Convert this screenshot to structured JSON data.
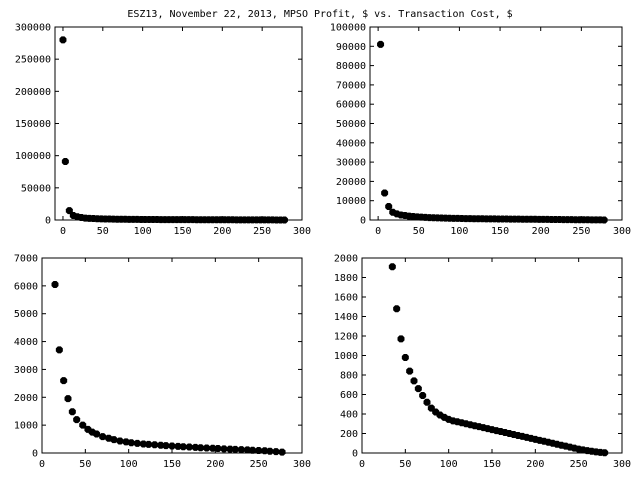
{
  "figure_title": "ESZ13, November 22, 2013, MPSO Profit, $ vs. Transaction Cost, $",
  "colors": {
    "background": "#ffffff",
    "axis": "#000000",
    "marker": "#000000"
  },
  "chart_data": [
    {
      "type": "scatter",
      "title": "",
      "xlabel": "",
      "ylabel": "",
      "xlim": [
        -10,
        300
      ],
      "ylim": [
        0,
        300000
      ],
      "xticks": [
        0,
        50,
        100,
        150,
        200,
        250,
        300
      ],
      "yticks": [
        0,
        50000,
        100000,
        150000,
        200000,
        250000,
        300000
      ],
      "points": [
        [
          0,
          280000
        ],
        [
          3,
          91000
        ],
        [
          8,
          14500
        ],
        [
          13,
          7000
        ],
        [
          18,
          5000
        ],
        [
          23,
          3800
        ],
        [
          28,
          3000
        ],
        [
          33,
          2600
        ],
        [
          38,
          2300
        ],
        [
          43,
          2000
        ],
        [
          48,
          1800
        ],
        [
          53,
          1600
        ],
        [
          58,
          1500
        ],
        [
          63,
          1350
        ],
        [
          68,
          1250
        ],
        [
          73,
          1150
        ],
        [
          78,
          1080
        ],
        [
          83,
          1020
        ],
        [
          88,
          960
        ],
        [
          93,
          900
        ],
        [
          98,
          860
        ],
        [
          103,
          820
        ],
        [
          108,
          780
        ],
        [
          113,
          740
        ],
        [
          118,
          700
        ],
        [
          123,
          680
        ],
        [
          128,
          650
        ],
        [
          133,
          620
        ],
        [
          138,
          600
        ],
        [
          143,
          580
        ],
        [
          148,
          560
        ],
        [
          153,
          540
        ],
        [
          158,
          520
        ],
        [
          163,
          500
        ],
        [
          168,
          480
        ],
        [
          173,
          460
        ],
        [
          178,
          440
        ],
        [
          183,
          420
        ],
        [
          188,
          400
        ],
        [
          193,
          380
        ],
        [
          198,
          360
        ],
        [
          203,
          340
        ],
        [
          208,
          320
        ],
        [
          213,
          300
        ],
        [
          218,
          280
        ],
        [
          223,
          260
        ],
        [
          228,
          240
        ],
        [
          233,
          220
        ],
        [
          238,
          200
        ],
        [
          243,
          180
        ],
        [
          248,
          160
        ],
        [
          253,
          140
        ],
        [
          258,
          120
        ],
        [
          263,
          100
        ],
        [
          268,
          80
        ],
        [
          273,
          60
        ],
        [
          278,
          30
        ]
      ]
    },
    {
      "type": "scatter",
      "title": "",
      "xlabel": "",
      "ylabel": "",
      "xlim": [
        -10,
        300
      ],
      "ylim": [
        0,
        100000
      ],
      "xticks": [
        0,
        50,
        100,
        150,
        200,
        250,
        300
      ],
      "yticks": [
        0,
        10000,
        20000,
        30000,
        40000,
        50000,
        60000,
        70000,
        80000,
        90000,
        100000
      ],
      "points": [
        [
          3,
          91000
        ],
        [
          8,
          14000
        ],
        [
          13,
          7000
        ],
        [
          18,
          4000
        ],
        [
          23,
          3200
        ],
        [
          28,
          2600
        ],
        [
          33,
          2300
        ],
        [
          38,
          2000
        ],
        [
          43,
          1800
        ],
        [
          48,
          1600
        ],
        [
          53,
          1500
        ],
        [
          58,
          1350
        ],
        [
          63,
          1250
        ],
        [
          68,
          1150
        ],
        [
          73,
          1080
        ],
        [
          78,
          1020
        ],
        [
          83,
          960
        ],
        [
          88,
          900
        ],
        [
          93,
          860
        ],
        [
          98,
          820
        ],
        [
          103,
          780
        ],
        [
          108,
          740
        ],
        [
          113,
          700
        ],
        [
          118,
          680
        ],
        [
          123,
          650
        ],
        [
          128,
          620
        ],
        [
          133,
          600
        ],
        [
          138,
          580
        ],
        [
          143,
          560
        ],
        [
          148,
          540
        ],
        [
          153,
          520
        ],
        [
          158,
          500
        ],
        [
          163,
          480
        ],
        [
          168,
          460
        ],
        [
          173,
          440
        ],
        [
          178,
          420
        ],
        [
          183,
          400
        ],
        [
          188,
          380
        ],
        [
          193,
          360
        ],
        [
          198,
          340
        ],
        [
          203,
          320
        ],
        [
          208,
          300
        ],
        [
          213,
          280
        ],
        [
          218,
          260
        ],
        [
          223,
          240
        ],
        [
          228,
          220
        ],
        [
          233,
          200
        ],
        [
          238,
          180
        ],
        [
          243,
          160
        ],
        [
          248,
          140
        ],
        [
          253,
          120
        ],
        [
          258,
          100
        ],
        [
          263,
          80
        ],
        [
          268,
          60
        ],
        [
          273,
          40
        ],
        [
          278,
          20
        ]
      ]
    },
    {
      "type": "scatter",
      "title": "",
      "xlabel": "",
      "ylabel": "",
      "xlim": [
        0,
        300
      ],
      "ylim": [
        0,
        7000
      ],
      "xticks": [
        0,
        50,
        100,
        150,
        200,
        250,
        300
      ],
      "yticks": [
        0,
        1000,
        2000,
        3000,
        4000,
        5000,
        6000,
        7000
      ],
      "points": [
        [
          15,
          6050
        ],
        [
          20,
          3700
        ],
        [
          25,
          2600
        ],
        [
          30,
          1950
        ],
        [
          35,
          1480
        ],
        [
          40,
          1200
        ],
        [
          47,
          1000
        ],
        [
          53,
          850
        ],
        [
          58,
          750
        ],
        [
          63,
          680
        ],
        [
          70,
          590
        ],
        [
          77,
          530
        ],
        [
          83,
          480
        ],
        [
          90,
          430
        ],
        [
          97,
          400
        ],
        [
          103,
          370
        ],
        [
          110,
          345
        ],
        [
          117,
          325
        ],
        [
          123,
          310
        ],
        [
          130,
          295
        ],
        [
          137,
          280
        ],
        [
          143,
          265
        ],
        [
          150,
          250
        ],
        [
          157,
          240
        ],
        [
          163,
          225
        ],
        [
          170,
          215
        ],
        [
          177,
          200
        ],
        [
          183,
          190
        ],
        [
          190,
          180
        ],
        [
          197,
          170
        ],
        [
          203,
          160
        ],
        [
          210,
          150
        ],
        [
          217,
          140
        ],
        [
          223,
          130
        ],
        [
          230,
          120
        ],
        [
          237,
          110
        ],
        [
          243,
          100
        ],
        [
          250,
          90
        ],
        [
          257,
          80
        ],
        [
          263,
          65
        ],
        [
          270,
          50
        ],
        [
          277,
          30
        ]
      ]
    },
    {
      "type": "scatter",
      "title": "",
      "xlabel": "",
      "ylabel": "",
      "xlim": [
        0,
        300
      ],
      "ylim": [
        0,
        2000
      ],
      "xticks": [
        0,
        50,
        100,
        150,
        200,
        250,
        300
      ],
      "yticks": [
        0,
        200,
        400,
        600,
        800,
        1000,
        1200,
        1400,
        1600,
        1800,
        2000
      ],
      "points": [
        [
          35,
          1910
        ],
        [
          40,
          1480
        ],
        [
          45,
          1170
        ],
        [
          50,
          980
        ],
        [
          55,
          840
        ],
        [
          60,
          740
        ],
        [
          65,
          660
        ],
        [
          70,
          590
        ],
        [
          75,
          520
        ],
        [
          80,
          460
        ],
        [
          85,
          420
        ],
        [
          90,
          390
        ],
        [
          95,
          365
        ],
        [
          100,
          345
        ],
        [
          105,
          330
        ],
        [
          110,
          320
        ],
        [
          115,
          310
        ],
        [
          120,
          300
        ],
        [
          125,
          290
        ],
        [
          130,
          280
        ],
        [
          135,
          270
        ],
        [
          140,
          260
        ],
        [
          145,
          250
        ],
        [
          150,
          240
        ],
        [
          155,
          230
        ],
        [
          160,
          220
        ],
        [
          165,
          210
        ],
        [
          170,
          200
        ],
        [
          175,
          190
        ],
        [
          180,
          180
        ],
        [
          185,
          170
        ],
        [
          190,
          160
        ],
        [
          195,
          150
        ],
        [
          200,
          140
        ],
        [
          205,
          130
        ],
        [
          210,
          120
        ],
        [
          215,
          110
        ],
        [
          220,
          100
        ],
        [
          225,
          90
        ],
        [
          230,
          80
        ],
        [
          235,
          70
        ],
        [
          240,
          60
        ],
        [
          245,
          50
        ],
        [
          250,
          40
        ],
        [
          255,
          32
        ],
        [
          260,
          25
        ],
        [
          265,
          18
        ],
        [
          270,
          12
        ],
        [
          275,
          7
        ],
        [
          280,
          3
        ]
      ]
    }
  ]
}
